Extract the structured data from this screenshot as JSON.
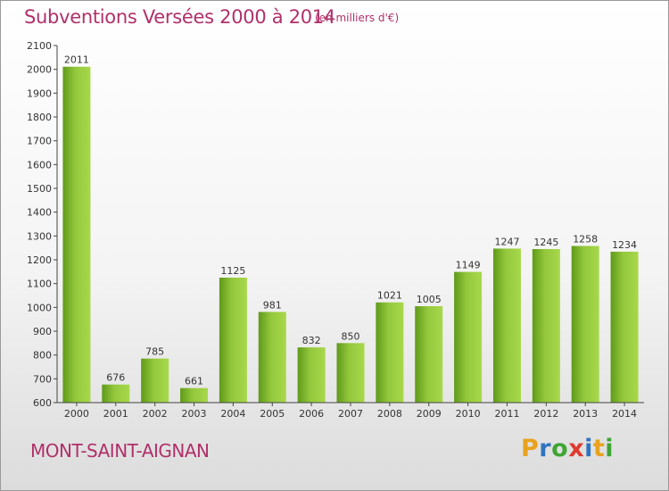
{
  "header": {
    "title": "Subventions Versées 2000 à 2014",
    "units": "(en milliers d'€)"
  },
  "commune": "MONT-SAINT-AIGNAN",
  "logo": {
    "text": "Proxiti",
    "letter_colors": [
      "#e8a21e",
      "#2f74c0",
      "#3fa535",
      "#e03a2f",
      "#2f74c0",
      "#e8a21e",
      "#3fa535"
    ]
  },
  "colors": {
    "bar_light": "#a8d84c",
    "bar_dark": "#5f9a1a",
    "title": "#b0306a"
  },
  "chart_data": {
    "type": "bar",
    "categories": [
      "2000",
      "2001",
      "2002",
      "2003",
      "2004",
      "2005",
      "2006",
      "2007",
      "2008",
      "2009",
      "2010",
      "2011",
      "2012",
      "2013",
      "2014"
    ],
    "values": [
      2011,
      676,
      785,
      661,
      1125,
      981,
      832,
      850,
      1021,
      1005,
      1149,
      1247,
      1245,
      1258,
      1234
    ],
    "value_labels": [
      "2011",
      "676",
      "785",
      "661",
      "1125",
      "981",
      "832",
      "850",
      "1021",
      "1005",
      "1149",
      "1247",
      "1245",
      "1258",
      "1234"
    ],
    "yticks": [
      "600",
      "700",
      "800",
      "900",
      "1000",
      "1100",
      "1200",
      "1300",
      "1400",
      "1500",
      "1600",
      "1700",
      "1800",
      "1900",
      "2000",
      "2100"
    ],
    "ylim": [
      600,
      2100
    ],
    "grid": false,
    "legend": "none"
  }
}
